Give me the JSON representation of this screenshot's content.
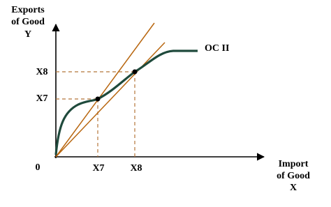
{
  "y_axis_label": [
    "Exports",
    "of Good",
    "Y"
  ],
  "x_axis_label": [
    "Import",
    "of Good",
    "X"
  ],
  "origin_label": "0",
  "x_ticks": [
    "X7",
    "X8"
  ],
  "y_ticks": [
    "X8",
    "X7"
  ],
  "curve_label": "OC II"
}
